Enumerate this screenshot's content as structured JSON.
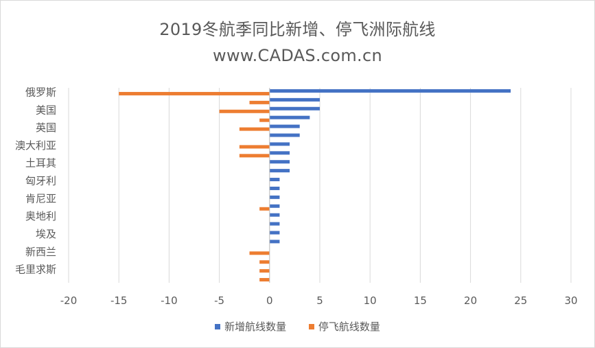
{
  "chart_data": {
    "type": "bar",
    "orientation": "horizontal",
    "title": "2019冬航季同比新增、停飞洲际航线",
    "subtitle": "www.CADAS.com.cn",
    "xlabel": "",
    "ylabel": "",
    "xlim": [
      -20,
      30
    ],
    "x_ticks": [
      -20,
      -15,
      -10,
      -5,
      0,
      5,
      10,
      15,
      20,
      25,
      30
    ],
    "grid": "vertical",
    "legend_position": "bottom",
    "categories": [
      "俄罗斯",
      "",
      "美国",
      "",
      "英国",
      "",
      "澳大利亚",
      "",
      "土耳其",
      "",
      "匈牙利",
      "",
      "肯尼亚",
      "",
      "奥地利",
      "",
      "埃及",
      "",
      "新西兰",
      "",
      "毛里求斯",
      ""
    ],
    "series": [
      {
        "name": "新增航线数量",
        "color": "#4472C4",
        "values": [
          24,
          5,
          5,
          4,
          3,
          3,
          2,
          2,
          2,
          2,
          1,
          1,
          1,
          1,
          1,
          1,
          1,
          1,
          0,
          0,
          0,
          0
        ]
      },
      {
        "name": "停飞航线数量",
        "color": "#ED7D31",
        "values": [
          -15,
          -2,
          -5,
          -1,
          -3,
          0,
          -3,
          -3,
          0,
          0,
          0,
          0,
          0,
          -1,
          0,
          0,
          0,
          0,
          -2,
          -1,
          -1,
          -1
        ]
      }
    ]
  }
}
